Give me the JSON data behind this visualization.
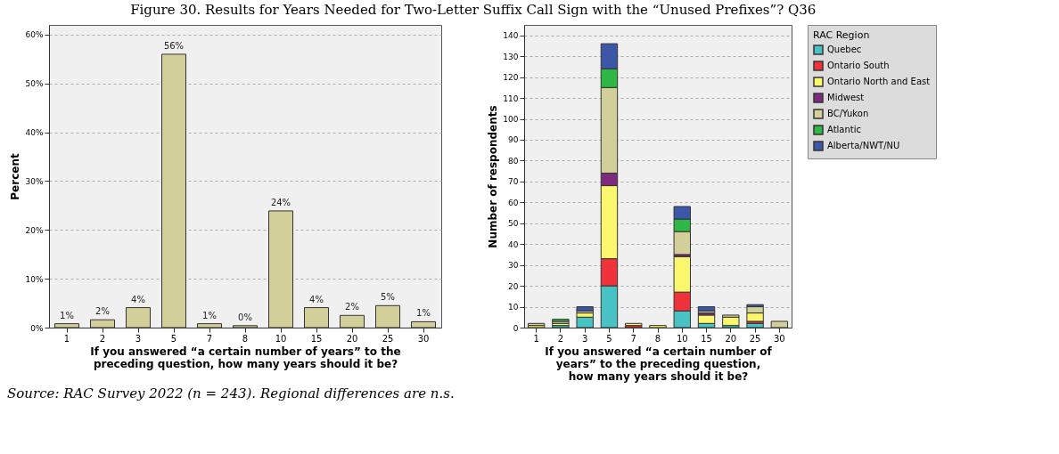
{
  "chart_data": [
    {
      "type": "bar",
      "title": "Figure 30. Results for Years Needed for Two-Letter Suffix Call Sign with the “Unused Prefixes”? Q36",
      "xlabel": "If you answered “a certain number of years” to the preceding question, how many years should it be?",
      "ylabel": "Percent",
      "categories": [
        "1",
        "2",
        "3",
        "5",
        "7",
        "8",
        "10",
        "15",
        "20",
        "25",
        "30"
      ],
      "values": [
        0.8,
        1.6,
        4.1,
        56,
        0.8,
        0.4,
        23.9,
        4.1,
        2.5,
        4.5,
        1.2
      ],
      "value_labels": [
        "1%",
        "2%",
        "4%",
        "56%",
        "1%",
        "0%",
        "24%",
        "4%",
        "2%",
        "5%",
        "1%"
      ],
      "color": "#d3cf9a",
      "ylim": [
        0,
        62
      ],
      "yticks": [
        {
          "value": 0,
          "label": "0%"
        },
        {
          "value": 10,
          "label": "10%"
        },
        {
          "value": 20,
          "label": "20%"
        },
        {
          "value": 30,
          "label": "30%"
        },
        {
          "value": 40,
          "label": "40%"
        },
        {
          "value": 50,
          "label": "50%"
        },
        {
          "value": 60,
          "label": "60%"
        }
      ],
      "grid": "y",
      "annotations": [
        "Source: RAC Survey 2022 (n = 243). Regional differences are n.s."
      ]
    },
    {
      "type": "bar",
      "stacked": true,
      "xlabel": "If you answered “a certain number of years” to the preceding question, how many years should it be?",
      "ylabel": "Number of respondents",
      "legend_title": "RAC Region",
      "legend": "right",
      "grid": "y",
      "categories": [
        "1",
        "2",
        "3",
        "5",
        "7",
        "8",
        "10",
        "15",
        "20",
        "25",
        "30"
      ],
      "ylim": [
        0,
        145
      ],
      "yticks": [
        0,
        10,
        20,
        30,
        40,
        50,
        60,
        70,
        80,
        90,
        100,
        110,
        120,
        130,
        140
      ],
      "series": [
        {
          "name": "Quebec",
          "color": "#48c2c5",
          "values": [
            0,
            1,
            5,
            20,
            0,
            0,
            8,
            2,
            1,
            2,
            0
          ]
        },
        {
          "name": "Ontario South",
          "color": "#f0333b",
          "values": [
            0,
            0,
            0,
            13,
            1,
            0,
            9,
            0,
            0,
            1,
            0
          ]
        },
        {
          "name": "Ontario North and East",
          "color": "#faf76f",
          "values": [
            1,
            1,
            2,
            35,
            1,
            1,
            17,
            4,
            4,
            4,
            0
          ]
        },
        {
          "name": "Midwest",
          "color": "#7e2a7e",
          "values": [
            0,
            0,
            0,
            6,
            0,
            0,
            1,
            1,
            0,
            0,
            0
          ]
        },
        {
          "name": "BC/Yukon",
          "color": "#d3cf9a",
          "values": [
            1,
            1,
            1,
            41,
            0,
            0,
            11,
            1,
            1,
            3,
            3
          ]
        },
        {
          "name": "Atlantic",
          "color": "#2fb846",
          "values": [
            0,
            1,
            0,
            9,
            0,
            0,
            6,
            0,
            0,
            0,
            0
          ]
        },
        {
          "name": "Alberta/NWT/NU",
          "color": "#3c56a8",
          "values": [
            0,
            0,
            2,
            12,
            0,
            0,
            6,
            2,
            0,
            1,
            0
          ]
        }
      ]
    }
  ]
}
